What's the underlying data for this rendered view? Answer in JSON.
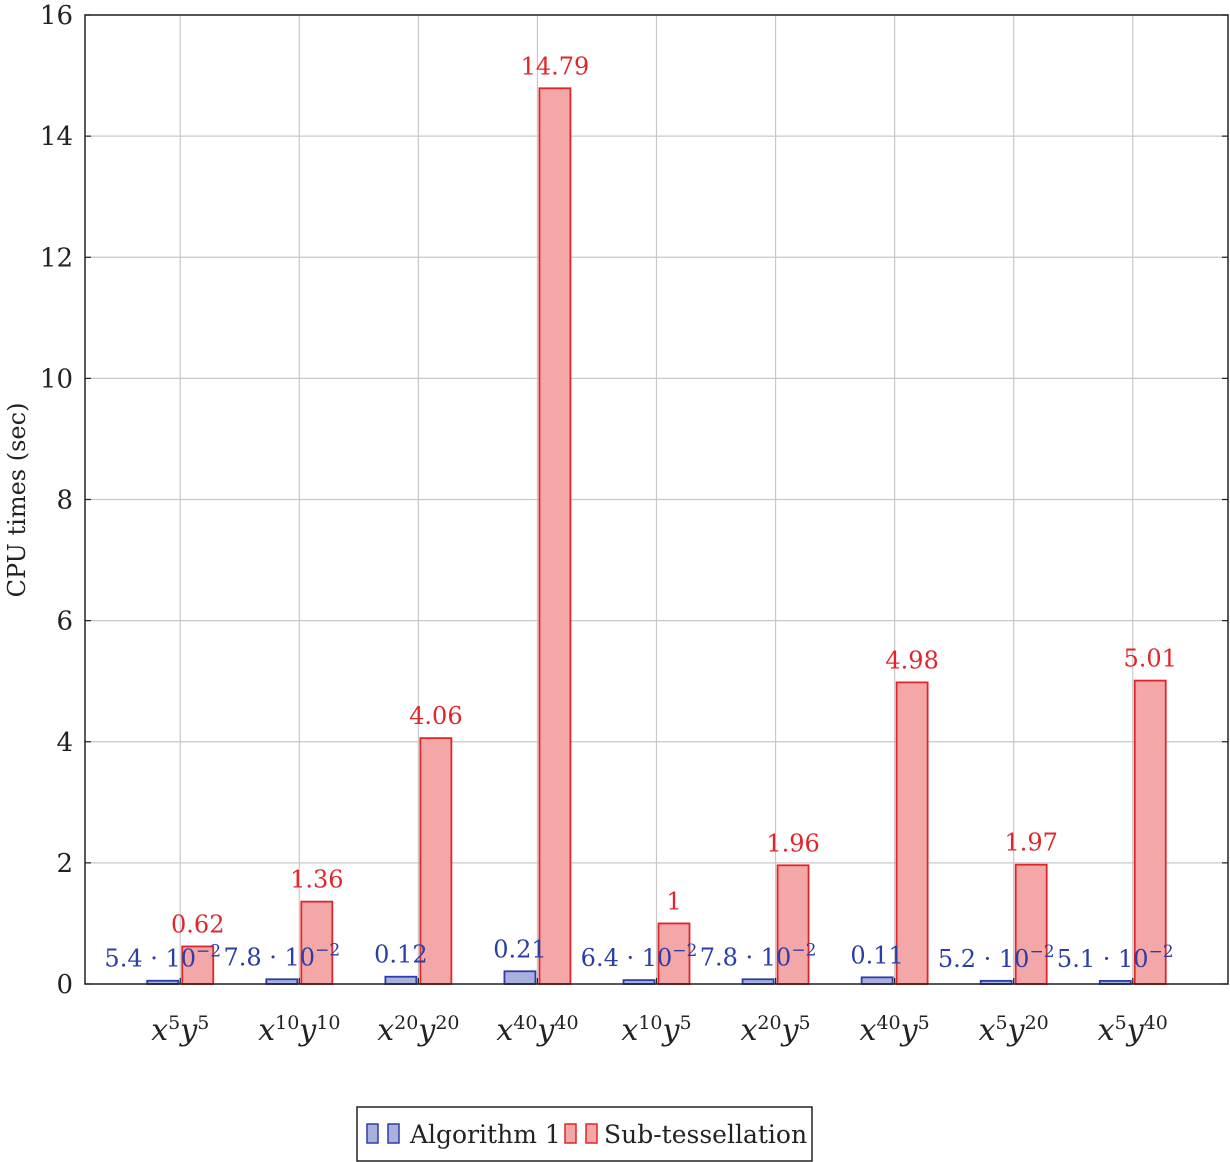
{
  "chart_data": {
    "type": "bar",
    "ylabel": "CPU times (sec)",
    "xlabel": "",
    "ylim": [
      0,
      16
    ],
    "yticks": [
      0,
      2,
      4,
      6,
      8,
      10,
      12,
      14,
      16
    ],
    "grid": true,
    "legend_position": "bottom-center",
    "categories": [
      {
        "base1": "x",
        "exp1": "5",
        "base2": "y",
        "exp2": "5"
      },
      {
        "base1": "x",
        "exp1": "10",
        "base2": "y",
        "exp2": "10"
      },
      {
        "base1": "x",
        "exp1": "20",
        "base2": "y",
        "exp2": "20"
      },
      {
        "base1": "x",
        "exp1": "40",
        "base2": "y",
        "exp2": "40"
      },
      {
        "base1": "x",
        "exp1": "10",
        "base2": "y",
        "exp2": "5"
      },
      {
        "base1": "x",
        "exp1": "20",
        "base2": "y",
        "exp2": "5"
      },
      {
        "base1": "x",
        "exp1": "40",
        "base2": "y",
        "exp2": "5"
      },
      {
        "base1": "x",
        "exp1": "5",
        "base2": "y",
        "exp2": "20"
      },
      {
        "base1": "x",
        "exp1": "5",
        "base2": "y",
        "exp2": "40"
      }
    ],
    "series": [
      {
        "name": "Algorithm 1",
        "fill": "#a9b0dc",
        "stroke": "#2b3ea8",
        "label_color": "#2b3ea8",
        "values": [
          0.054,
          0.078,
          0.12,
          0.21,
          0.064,
          0.078,
          0.11,
          0.052,
          0.051
        ],
        "labels": [
          {
            "mantissa": "5.4 · 10",
            "exp": "−2"
          },
          {
            "mantissa": "7.8 · 10",
            "exp": "−2"
          },
          {
            "mantissa": "0.12",
            "exp": ""
          },
          {
            "mantissa": "0.21",
            "exp": ""
          },
          {
            "mantissa": "6.4 · 10",
            "exp": "−2"
          },
          {
            "mantissa": "7.8 · 10",
            "exp": "−2"
          },
          {
            "mantissa": "0.11",
            "exp": ""
          },
          {
            "mantissa": "5.2 · 10",
            "exp": "−2"
          },
          {
            "mantissa": "5.1 · 10",
            "exp": "−2"
          }
        ]
      },
      {
        "name": "Sub-tessellation",
        "fill": "#f4a7a7",
        "stroke": "#e0262a",
        "label_color": "#e0262a",
        "values": [
          0.62,
          1.36,
          4.06,
          14.79,
          1,
          1.96,
          4.98,
          1.97,
          5.01
        ],
        "labels": [
          {
            "mantissa": "0.62",
            "exp": ""
          },
          {
            "mantissa": "1.36",
            "exp": ""
          },
          {
            "mantissa": "4.06",
            "exp": ""
          },
          {
            "mantissa": "14.79",
            "exp": ""
          },
          {
            "mantissa": "1",
            "exp": ""
          },
          {
            "mantissa": "1.96",
            "exp": ""
          },
          {
            "mantissa": "4.98",
            "exp": ""
          },
          {
            "mantissa": "1.97",
            "exp": ""
          },
          {
            "mantissa": "5.01",
            "exp": ""
          }
        ]
      }
    ]
  }
}
